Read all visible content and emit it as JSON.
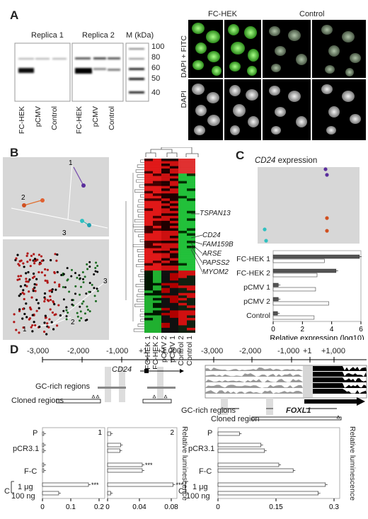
{
  "panels": {
    "A": "A",
    "B": "B",
    "C": "C",
    "D": "D"
  },
  "panelA": {
    "blot": {
      "replica1": "Replica 1",
      "replica2": "Replica 2",
      "marker": "M (kDa)",
      "mw": [
        "100",
        "80",
        "60",
        "50",
        "40"
      ],
      "lanes": [
        "FC-HEK",
        "pCMV",
        "Control",
        "FC-HEK",
        "pCMV",
        "Control"
      ]
    },
    "micro": {
      "col1": "FC-HEK",
      "col2": "Control",
      "row1": "DAPI + FITC",
      "row2": "DAPI"
    }
  },
  "panelB": {
    "pca": {
      "labels": [
        "1",
        "2",
        "3"
      ]
    },
    "pca2": {
      "labels": [
        "3",
        "2",
        "1"
      ]
    },
    "genes": [
      "TSPAN13",
      "CD24",
      "FAM159B",
      "ARSE",
      "PAPSS2",
      "MYOM2"
    ],
    "columns": [
      "FC-HEK 1",
      "FC-HEK 2",
      "pCMV 2",
      "pCMV 1",
      "Control 2",
      "Control 1"
    ]
  },
  "panelC": {
    "title_gene": "CD24",
    "title_rest": " expression",
    "chart_data": {
      "type": "bar",
      "categories": [
        "FC-HEK 1",
        "FC-HEK 2",
        "pCMV 1",
        "pCMV 2",
        "Control"
      ],
      "series": [
        {
          "values": [
            5.9,
            4.3,
            0.35,
            0.35,
            0.3
          ]
        },
        {
          "values": [
            3.5,
            3.0,
            2.9,
            3.8,
            2.8
          ]
        }
      ],
      "xlabel": "Relative expression (log10)",
      "xlim": [
        0,
        6
      ],
      "xticks": [
        "0",
        "2",
        "4",
        "6"
      ]
    }
  },
  "panelD": {
    "axis_left": [
      "-3,000",
      "-2,000",
      "-1,000",
      "+1",
      "+1,000"
    ],
    "axis_right": [
      "-3,000",
      "-2,000",
      "-1,000",
      "+1",
      "+1,000"
    ],
    "gene_left": "CD24",
    "gene_right": "FOXL1",
    "gc_label": "GC-rich regions",
    "cloned_label": "Cloned regions",
    "gc_label_r": "GC-rich regions",
    "cloned_label_r": "Cloned region",
    "rows": [
      "P",
      "pCR3.1",
      "F-C",
      "1 μg",
      "100 ng"
    ],
    "c_label": "C",
    "rel_lum": "Relative luminescence",
    "plot1": {
      "num": "1",
      "ticks": [
        "0",
        "0.1",
        "0.2"
      ],
      "sig": "***"
    },
    "plot2": {
      "num": "2",
      "ticks": [
        "0",
        "0.04",
        "0.08"
      ],
      "sig": [
        "***",
        "***"
      ]
    },
    "plot3": {
      "ticks": [
        "0",
        "0.15",
        "0.3"
      ]
    },
    "chart_data": [
      {
        "type": "bar",
        "categories": [
          "P",
          "pCR3.1",
          "pCR3.1",
          "F-C",
          "F-C",
          "1 μg",
          "100 ng"
        ],
        "values": [
          0.005,
          0.005,
          0.005,
          0.005,
          0.005,
          0.17,
          0.06
        ],
        "xlim": [
          0,
          0.23
        ]
      },
      {
        "type": "bar",
        "categories": [
          "P",
          "pCR3.1",
          "pCR3.1",
          "F-C",
          "F-C",
          "1 μg",
          "100 ng"
        ],
        "values": [
          0.004,
          0.017,
          0.016,
          0.045,
          0.045,
          0.085,
          0.004
        ],
        "xlim": [
          0,
          0.09
        ]
      },
      {
        "type": "bar",
        "categories": [
          "P",
          "pCR3.1",
          "pCR3.1",
          "F-C",
          "F-C",
          "1 μg",
          "100 ng"
        ],
        "values": [
          0.06,
          0.12,
          0.13,
          0.17,
          0.21,
          0.3,
          0.28
        ],
        "xlim": [
          0,
          0.34
        ]
      }
    ]
  }
}
